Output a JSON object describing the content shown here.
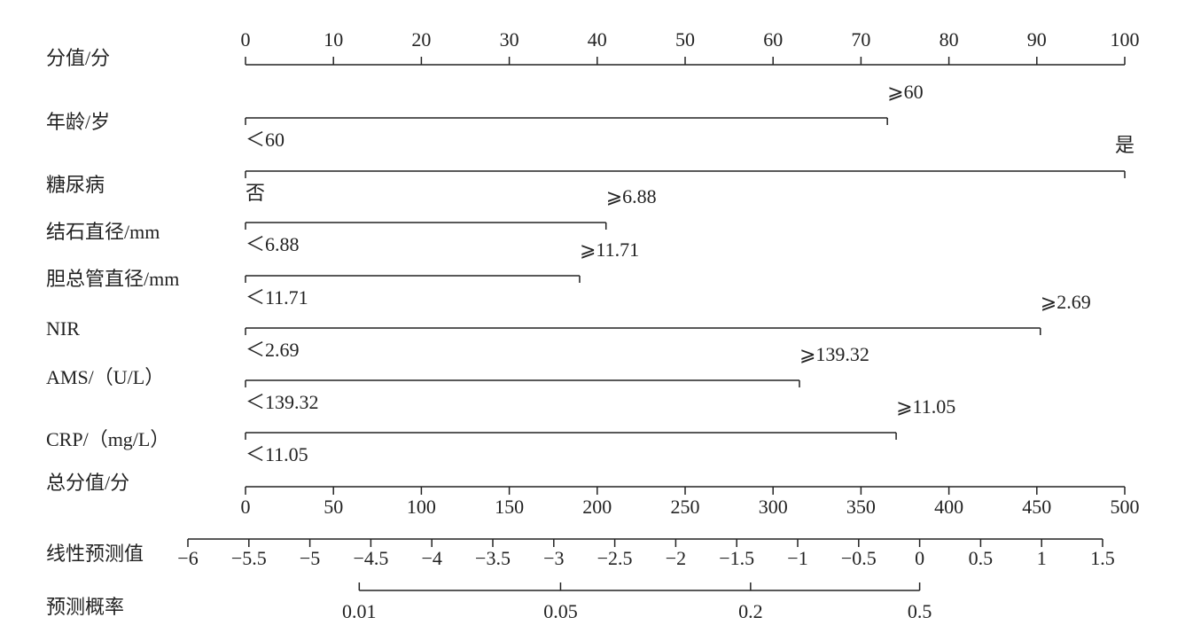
{
  "chart_data": {
    "type": "nomogram",
    "points_axis": {
      "label": "分值/分",
      "xlim": [
        0,
        100
      ],
      "ticks": [
        0,
        10,
        20,
        30,
        40,
        50,
        60,
        70,
        80,
        90,
        100
      ]
    },
    "variables": [
      {
        "name": "年龄/岁",
        "levels": [
          {
            "label": "＜60",
            "points": 0
          },
          {
            "label": "⩾60",
            "points": 73
          }
        ]
      },
      {
        "name": "糖尿病",
        "levels": [
          {
            "label": "否",
            "points": 0
          },
          {
            "label": "是",
            "points": 100
          }
        ]
      },
      {
        "name": "结石直径/mm",
        "levels": [
          {
            "label": "＜6.88",
            "points": 0
          },
          {
            "label": "⩾6.88",
            "points": 41
          }
        ]
      },
      {
        "name": "胆总管直径/mm",
        "levels": [
          {
            "label": "＜11.71",
            "points": 0
          },
          {
            "label": "⩾11.71",
            "points": 38
          }
        ]
      },
      {
        "name": "NIR",
        "levels": [
          {
            "label": "＜2.69",
            "points": 0
          },
          {
            "label": "⩾2.69",
            "points": 90.4
          }
        ]
      },
      {
        "name": "AMS/（U/L）",
        "levels": [
          {
            "label": "＜139.32",
            "points": 0
          },
          {
            "label": "⩾139.32",
            "points": 63
          }
        ]
      },
      {
        "name": "CRP/（mg/L）",
        "levels": [
          {
            "label": "＜11.05",
            "points": 0
          },
          {
            "label": "⩾11.05",
            "points": 74
          }
        ]
      }
    ],
    "total_points_axis": {
      "label": "总分值/分",
      "xlim": [
        0,
        500
      ],
      "ticks": [
        0,
        50,
        100,
        150,
        200,
        250,
        300,
        350,
        400,
        450,
        500
      ]
    },
    "linear_predictor_axis": {
      "label": "线性预测值",
      "xlim": [
        -6,
        1.5
      ],
      "ticks": [
        {
          "value": -6,
          "label": "−6"
        },
        {
          "value": -5.5,
          "label": "−5.5"
        },
        {
          "value": -5,
          "label": "−5"
        },
        {
          "value": -4.5,
          "label": "−4.5"
        },
        {
          "value": -4,
          "label": "−4"
        },
        {
          "value": -3.5,
          "label": "−3.5"
        },
        {
          "value": -3,
          "label": "−3"
        },
        {
          "value": -2.5,
          "label": "−2.5"
        },
        {
          "value": -2,
          "label": "−2"
        },
        {
          "value": -1.5,
          "label": "−1.5"
        },
        {
          "value": -1,
          "label": "−1"
        },
        {
          "value": -0.5,
          "label": "−0.5"
        },
        0,
        0.5,
        1,
        1.5
      ]
    },
    "probability_axis": {
      "label": "预测概率",
      "scale": "logit",
      "ticks": [
        0.01,
        0.05,
        0.2,
        0.5
      ]
    }
  }
}
